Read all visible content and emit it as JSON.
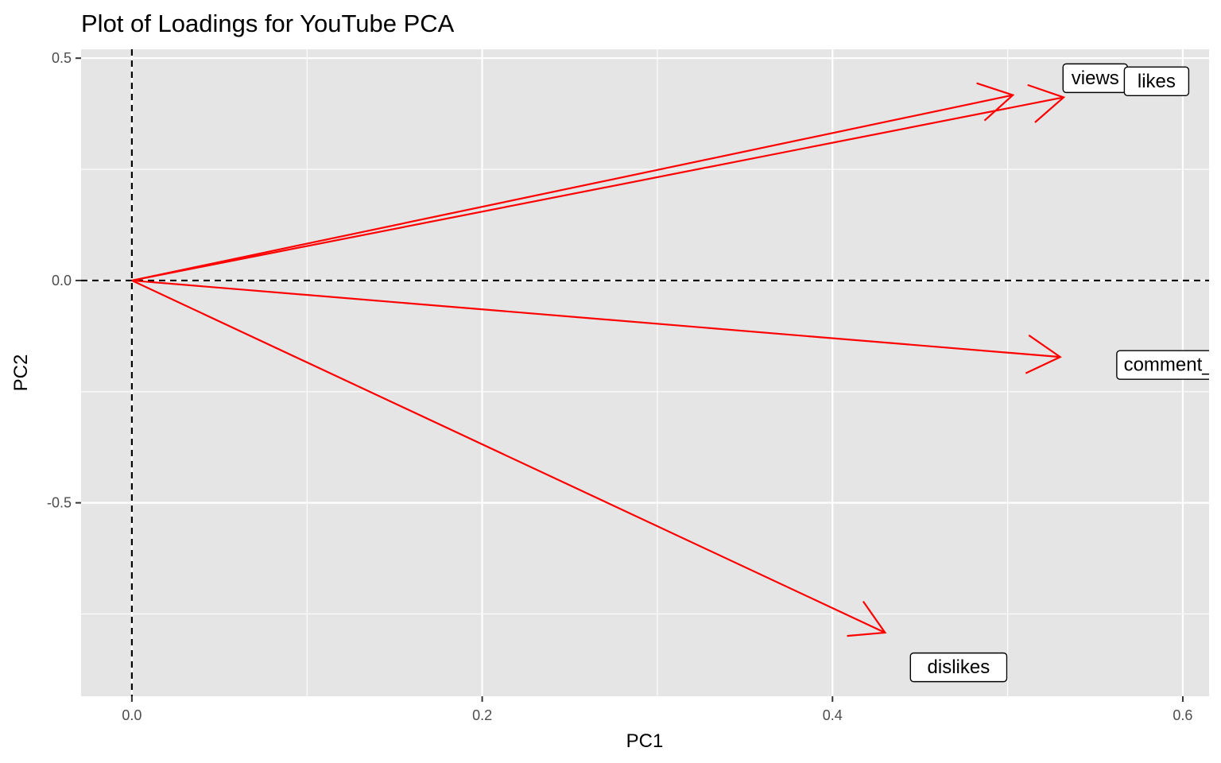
{
  "chart_data": {
    "type": "scatter",
    "subtype": "pca-loadings-biplot",
    "title": "Plot of Loadings for YouTube PCA",
    "xlabel": "PC1",
    "ylabel": "PC2",
    "xlim": [
      -0.029,
      0.615
    ],
    "ylim": [
      -0.935,
      0.52
    ],
    "xticks": [
      0.0,
      0.2,
      0.4,
      0.6
    ],
    "xtick_labels": [
      "0.0",
      "0.2",
      "0.4",
      "0.6"
    ],
    "yticks": [
      0.5,
      0.0,
      -0.5
    ],
    "ytick_labels": [
      "0.5",
      "0.0",
      "-0.5"
    ],
    "grid": true,
    "legend": "none",
    "reference_lines": {
      "x": 0,
      "y": 0,
      "style": "dashed"
    },
    "colors": {
      "panel": "#e5e5e5",
      "grid": "#ffffff",
      "arrow": "#ff0000",
      "reference": "#000000",
      "tick_text": "#4d4d4d"
    },
    "series": [
      {
        "name": "views",
        "x": 0.503,
        "y": 0.417,
        "label_x": 0.55,
        "label_y": 0.455
      },
      {
        "name": "likes",
        "x": 0.532,
        "y": 0.412,
        "label_x": 0.585,
        "label_y": 0.448
      },
      {
        "name": "comment_count",
        "x": 0.53,
        "y": -0.172,
        "label_x": 0.605,
        "label_y": -0.19
      },
      {
        "name": "dislikes",
        "x": 0.43,
        "y": -0.792,
        "label_x": 0.472,
        "label_y": -0.87
      }
    ]
  }
}
